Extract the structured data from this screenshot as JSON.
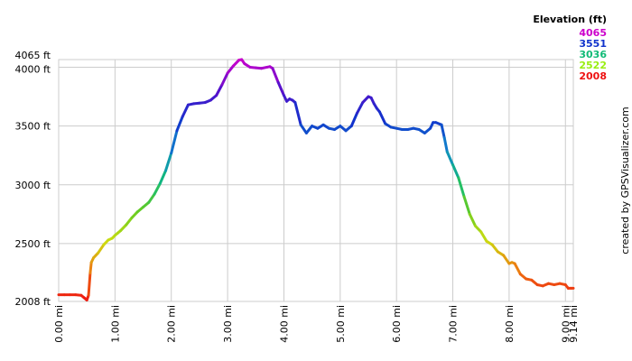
{
  "chart_data": {
    "type": "line",
    "title": "",
    "xlabel": "",
    "ylabel": "",
    "x_unit": "mi",
    "y_unit": "ft",
    "xlim": [
      0,
      9.14
    ],
    "ylim": [
      2008,
      4065
    ],
    "grid": true,
    "x_tick_labels": [
      "0.00 mi",
      "1.00 mi",
      "2.00 mi",
      "3.00 mi",
      "4.00 mi",
      "5.00 mi",
      "6.00 mi",
      "7.00 mi",
      "8.00 mi",
      "9.00 mi",
      "9.14 mi"
    ],
    "x_ticks": [
      0,
      1,
      2,
      3,
      4,
      5,
      6,
      7,
      8,
      9,
      9.14
    ],
    "y_tick_labels": [
      "2008 ft",
      "2500 ft",
      "3000 ft",
      "3500 ft",
      "4000 ft",
      "4065 ft"
    ],
    "y_ticks": [
      2008,
      2500,
      3000,
      3500,
      4000,
      4065
    ],
    "legend": {
      "title": "Elevation (ft)",
      "placement": "top-right",
      "entries": [
        {
          "label": "4065",
          "color": "#cc00cc"
        },
        {
          "label": "3551",
          "color": "#1133cc"
        },
        {
          "label": "3036",
          "color": "#11bb77"
        },
        {
          "label": "2522",
          "color": "#99ee11"
        },
        {
          "label": "2008",
          "color": "#ee1111"
        }
      ]
    },
    "color_scale": [
      {
        "value": 2008,
        "color": "#ee1111"
      },
      {
        "value": 2265,
        "color": "#ee7711"
      },
      {
        "value": 2522,
        "color": "#ccdd11"
      },
      {
        "value": 2779,
        "color": "#66cc22"
      },
      {
        "value": 3036,
        "color": "#11bb77"
      },
      {
        "value": 3294,
        "color": "#1188cc"
      },
      {
        "value": 3551,
        "color": "#1133cc"
      },
      {
        "value": 3808,
        "color": "#5511cc"
      },
      {
        "value": 4065,
        "color": "#cc00cc"
      }
    ],
    "series": [
      {
        "x": [
          0.0,
          0.1,
          0.2,
          0.3,
          0.4,
          0.45,
          0.5,
          0.53,
          0.56,
          0.58,
          0.62,
          0.7,
          0.8,
          0.88,
          0.95,
          1.0,
          1.05,
          1.1,
          1.2,
          1.3,
          1.4,
          1.5,
          1.6,
          1.7,
          1.8,
          1.9,
          2.0,
          2.1,
          2.2,
          2.3,
          2.4,
          2.5,
          2.6,
          2.7,
          2.8,
          2.9,
          3.0,
          3.1,
          3.2,
          3.25,
          3.3,
          3.4,
          3.5,
          3.6,
          3.7,
          3.75,
          3.8,
          3.9,
          4.0,
          4.05,
          4.1,
          4.15,
          4.2,
          4.3,
          4.4,
          4.5,
          4.6,
          4.7,
          4.8,
          4.9,
          5.0,
          5.1,
          5.2,
          5.3,
          5.4,
          5.5,
          5.55,
          5.6,
          5.65,
          5.7,
          5.8,
          5.9,
          6.0,
          6.1,
          6.2,
          6.3,
          6.4,
          6.5,
          6.6,
          6.65,
          6.7,
          6.8,
          6.85,
          6.9,
          7.0,
          7.1,
          7.2,
          7.3,
          7.4,
          7.5,
          7.6,
          7.7,
          7.8,
          7.9,
          8.0,
          8.05,
          8.1,
          8.2,
          8.3,
          8.4,
          8.5,
          8.6,
          8.7,
          8.8,
          8.9,
          9.0,
          9.05,
          9.1,
          9.14
        ],
        "values": [
          2065,
          2065,
          2065,
          2065,
          2060,
          2040,
          2020,
          2060,
          2250,
          2340,
          2380,
          2420,
          2490,
          2530,
          2545,
          2570,
          2590,
          2610,
          2660,
          2720,
          2770,
          2810,
          2850,
          2920,
          3010,
          3120,
          3270,
          3460,
          3580,
          3680,
          3690,
          3695,
          3700,
          3720,
          3760,
          3850,
          3950,
          4010,
          4060,
          4065,
          4030,
          4000,
          3995,
          3990,
          4000,
          4005,
          3990,
          3870,
          3760,
          3710,
          3730,
          3720,
          3700,
          3510,
          3440,
          3500,
          3480,
          3510,
          3480,
          3470,
          3500,
          3460,
          3500,
          3610,
          3700,
          3750,
          3740,
          3690,
          3650,
          3620,
          3520,
          3490,
          3480,
          3470,
          3470,
          3480,
          3470,
          3440,
          3480,
          3530,
          3530,
          3510,
          3400,
          3280,
          3170,
          3060,
          2900,
          2750,
          2650,
          2600,
          2520,
          2490,
          2430,
          2400,
          2330,
          2340,
          2330,
          2240,
          2200,
          2190,
          2150,
          2140,
          2160,
          2150,
          2160,
          2150,
          2120,
          2120,
          2120
        ]
      }
    ]
  },
  "credit": "created by GPSVisualizer.com"
}
